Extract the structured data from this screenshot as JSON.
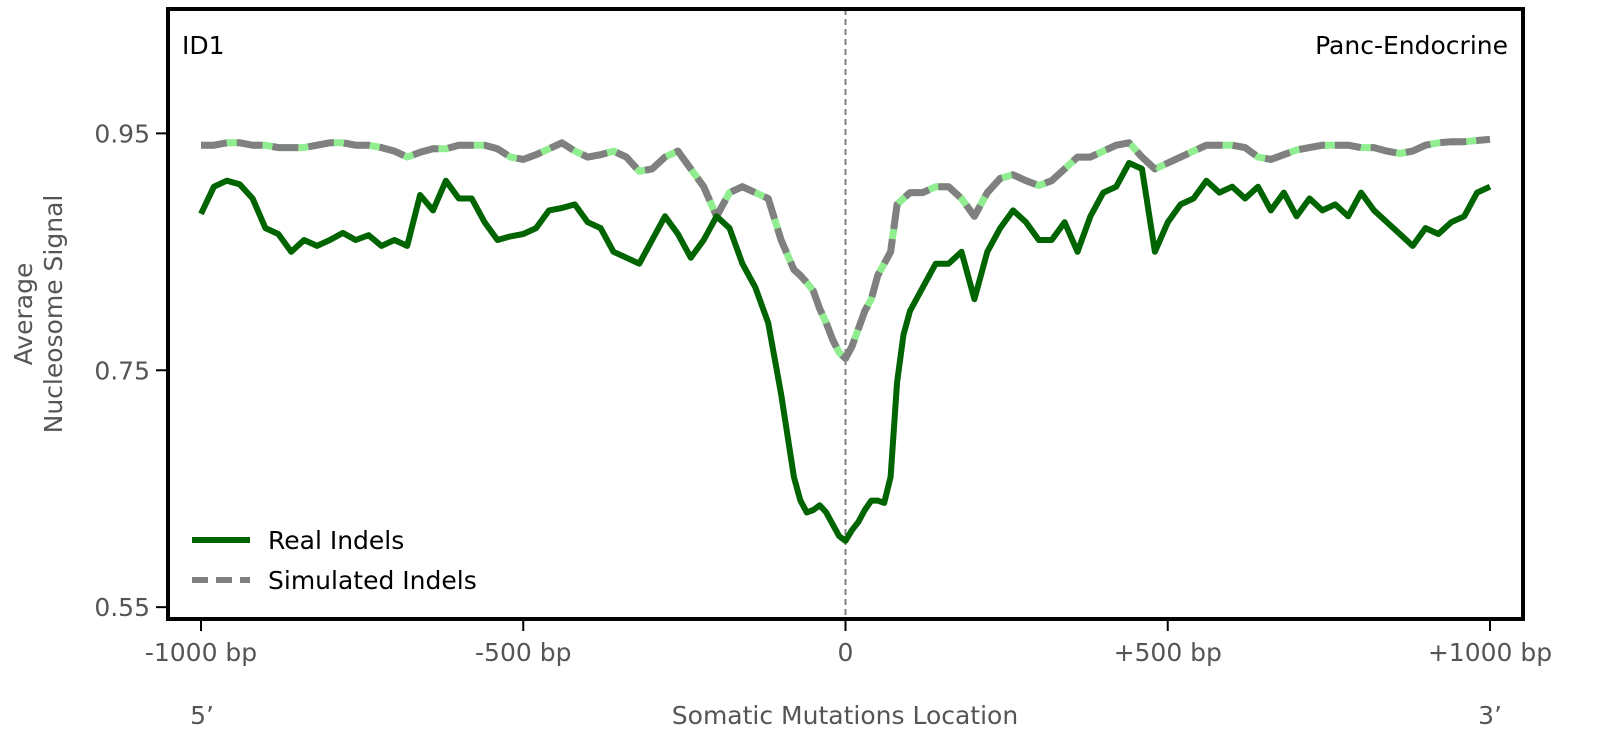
{
  "chart_data": {
    "type": "line",
    "corner_left": "ID1",
    "corner_right": "Panc-Endocrine",
    "xlabel": "Somatic Mutations Location",
    "ylabel": [
      "Average",
      "Nucleosome Signal"
    ],
    "xlim": [
      -1000,
      1000
    ],
    "ylim": [
      0.54,
      1.055
    ],
    "x_ticks": [
      {
        "value": -1000,
        "label": "-1000 bp"
      },
      {
        "value": -500,
        "label": "-500 bp"
      },
      {
        "value": 0,
        "label": "0"
      },
      {
        "value": 500,
        "label": "+500 bp"
      },
      {
        "value": 1000,
        "label": "+1000 bp"
      }
    ],
    "y_ticks": [
      {
        "value": 0.55,
        "label": "0.55"
      },
      {
        "value": 0.75,
        "label": "0.75"
      },
      {
        "value": 0.95,
        "label": "0.95"
      }
    ],
    "strand_labels": {
      "left": "5’",
      "right": "3’"
    },
    "center_line_x": 0,
    "grid": false,
    "legend_position": "lower-left",
    "colors": {
      "real": "#006400",
      "simulated": "#808080",
      "simulated_accent": "#90ee90",
      "center_line": "#808080"
    },
    "series": [
      {
        "name": "Real Indels",
        "style": "solid",
        "x": [
          -1000,
          -980,
          -960,
          -940,
          -920,
          -900,
          -880,
          -860,
          -840,
          -820,
          -800,
          -780,
          -760,
          -740,
          -720,
          -700,
          -680,
          -660,
          -640,
          -620,
          -600,
          -580,
          -560,
          -540,
          -520,
          -500,
          -480,
          -460,
          -440,
          -420,
          -400,
          -380,
          -360,
          -340,
          -320,
          -300,
          -280,
          -260,
          -240,
          -220,
          -200,
          -180,
          -160,
          -140,
          -120,
          -100,
          -80,
          -70,
          -60,
          -50,
          -40,
          -30,
          -20,
          -10,
          0,
          10,
          20,
          30,
          40,
          50,
          60,
          70,
          80,
          90,
          100,
          120,
          140,
          160,
          180,
          200,
          220,
          240,
          260,
          280,
          300,
          320,
          340,
          360,
          380,
          400,
          420,
          440,
          460,
          480,
          500,
          520,
          540,
          560,
          580,
          600,
          620,
          640,
          660,
          680,
          700,
          720,
          740,
          760,
          780,
          800,
          820,
          840,
          860,
          880,
          900,
          920,
          940,
          960,
          980,
          1000
        ],
        "values": [
          0.882,
          0.905,
          0.91,
          0.907,
          0.895,
          0.87,
          0.865,
          0.85,
          0.86,
          0.855,
          0.86,
          0.866,
          0.86,
          0.864,
          0.855,
          0.86,
          0.855,
          0.898,
          0.885,
          0.91,
          0.895,
          0.895,
          0.875,
          0.86,
          0.863,
          0.865,
          0.87,
          0.885,
          0.887,
          0.89,
          0.875,
          0.87,
          0.85,
          0.845,
          0.84,
          0.86,
          0.88,
          0.865,
          0.845,
          0.86,
          0.88,
          0.87,
          0.84,
          0.82,
          0.79,
          0.73,
          0.66,
          0.64,
          0.63,
          0.632,
          0.636,
          0.63,
          0.62,
          0.61,
          0.606,
          0.615,
          0.622,
          0.632,
          0.64,
          0.64,
          0.638,
          0.66,
          0.74,
          0.78,
          0.8,
          0.82,
          0.84,
          0.84,
          0.85,
          0.81,
          0.85,
          0.87,
          0.885,
          0.875,
          0.86,
          0.86,
          0.875,
          0.85,
          0.88,
          0.9,
          0.905,
          0.925,
          0.92,
          0.85,
          0.875,
          0.89,
          0.895,
          0.91,
          0.9,
          0.905,
          0.895,
          0.905,
          0.885,
          0.9,
          0.88,
          0.895,
          0.885,
          0.89,
          0.88,
          0.9,
          0.885,
          0.875,
          0.865,
          0.855,
          0.87,
          0.865,
          0.875,
          0.88,
          0.9,
          0.905
        ]
      },
      {
        "name": "Simulated Indels",
        "style": "dashed",
        "x": [
          -1000,
          -980,
          -960,
          -940,
          -920,
          -900,
          -880,
          -860,
          -840,
          -820,
          -800,
          -780,
          -760,
          -740,
          -720,
          -700,
          -680,
          -660,
          -640,
          -620,
          -600,
          -580,
          -560,
          -540,
          -520,
          -500,
          -480,
          -460,
          -440,
          -420,
          -400,
          -380,
          -360,
          -340,
          -320,
          -300,
          -280,
          -260,
          -240,
          -220,
          -200,
          -180,
          -160,
          -140,
          -120,
          -100,
          -80,
          -70,
          -60,
          -50,
          -40,
          -30,
          -20,
          -10,
          0,
          10,
          20,
          30,
          40,
          50,
          60,
          70,
          80,
          90,
          100,
          120,
          140,
          160,
          180,
          200,
          220,
          240,
          260,
          280,
          300,
          320,
          340,
          360,
          380,
          400,
          420,
          440,
          460,
          480,
          500,
          520,
          540,
          560,
          580,
          600,
          620,
          640,
          660,
          680,
          700,
          720,
          740,
          760,
          780,
          800,
          820,
          840,
          860,
          880,
          900,
          920,
          940,
          960,
          980,
          1000
        ],
        "values": [
          0.94,
          0.94,
          0.942,
          0.942,
          0.94,
          0.94,
          0.938,
          0.938,
          0.938,
          0.94,
          0.942,
          0.942,
          0.94,
          0.94,
          0.938,
          0.935,
          0.93,
          0.934,
          0.937,
          0.937,
          0.94,
          0.94,
          0.94,
          0.937,
          0.93,
          0.928,
          0.932,
          0.937,
          0.942,
          0.935,
          0.93,
          0.932,
          0.935,
          0.93,
          0.918,
          0.92,
          0.93,
          0.935,
          0.92,
          0.905,
          0.88,
          0.9,
          0.905,
          0.9,
          0.895,
          0.86,
          0.835,
          0.83,
          0.824,
          0.817,
          0.802,
          0.79,
          0.776,
          0.765,
          0.76,
          0.77,
          0.785,
          0.8,
          0.81,
          0.83,
          0.84,
          0.85,
          0.89,
          0.895,
          0.9,
          0.9,
          0.905,
          0.905,
          0.895,
          0.88,
          0.9,
          0.912,
          0.915,
          0.91,
          0.906,
          0.91,
          0.92,
          0.93,
          0.93,
          0.935,
          0.94,
          0.942,
          0.93,
          0.92,
          0.925,
          0.93,
          0.935,
          0.94,
          0.94,
          0.94,
          0.938,
          0.93,
          0.928,
          0.932,
          0.936,
          0.938,
          0.94,
          0.94,
          0.94,
          0.938,
          0.938,
          0.935,
          0.933,
          0.935,
          0.94,
          0.942,
          0.943,
          0.943,
          0.944,
          0.945
        ]
      }
    ]
  }
}
